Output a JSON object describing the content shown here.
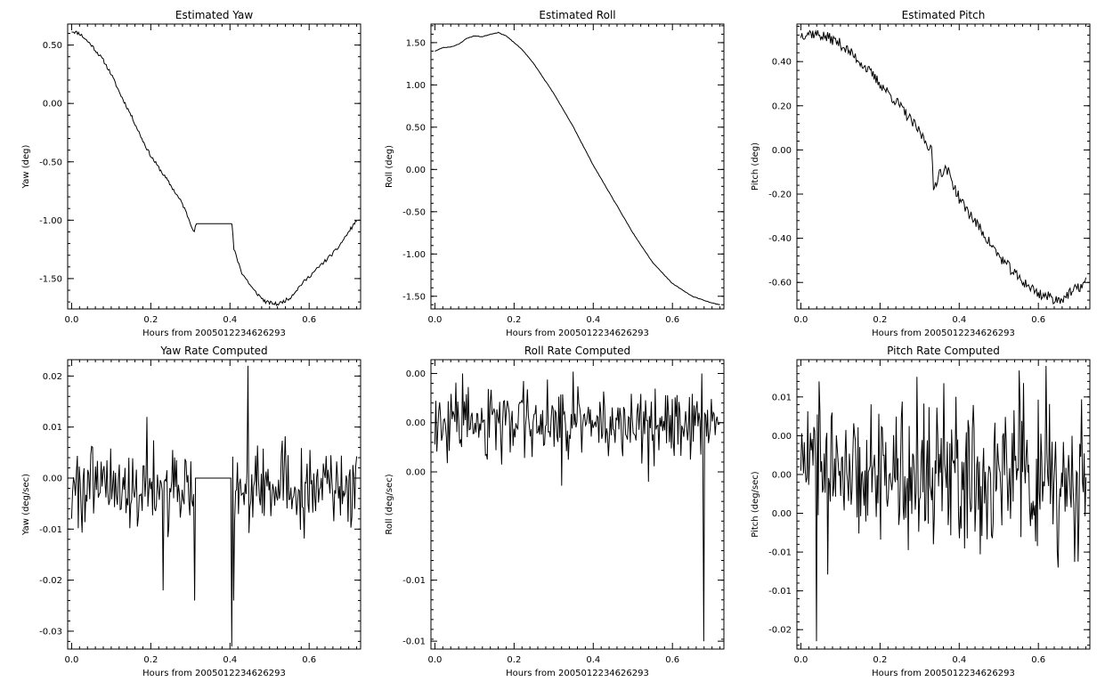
{
  "figure": {
    "background": "#ffffff",
    "line_color": "#000000"
  },
  "chart_data": [
    {
      "type": "line",
      "title": "Estimated Yaw",
      "xlabel": "Hours from 2005012234626293",
      "ylabel": "Yaw (deg)",
      "xlim": [
        -0.01,
        0.73
      ],
      "ylim": [
        -1.76,
        0.68
      ],
      "xticks": [
        0.0,
        0.2,
        0.4,
        0.6
      ],
      "xtick_labels": [
        "0.0",
        "0.2",
        "0.4",
        "0.6"
      ],
      "yticks": [
        0.5,
        0.0,
        -0.5,
        -1.0,
        -1.5
      ],
      "ytick_labels": [
        "0.50",
        "0.00",
        "-0.50",
        "-1.00",
        "-1.50"
      ],
      "series": [
        {
          "noise": 0.015,
          "seed": 11,
          "flat_segments": [
            [
              0.315,
              0.405
            ]
          ],
          "x": [
            0.0,
            0.02,
            0.05,
            0.08,
            0.1,
            0.12,
            0.15,
            0.18,
            0.2,
            0.22,
            0.25,
            0.28,
            0.3,
            0.31,
            0.315,
            0.405,
            0.41,
            0.43,
            0.46,
            0.49,
            0.52,
            0.55,
            0.58,
            0.61,
            0.64,
            0.67,
            0.7,
            0.72
          ],
          "y": [
            0.62,
            0.6,
            0.5,
            0.37,
            0.25,
            0.1,
            -0.1,
            -0.32,
            -0.45,
            -0.55,
            -0.7,
            -0.86,
            -1.02,
            -1.1,
            -1.03,
            -1.03,
            -1.25,
            -1.45,
            -1.6,
            -1.7,
            -1.72,
            -1.67,
            -1.55,
            -1.45,
            -1.35,
            -1.25,
            -1.1,
            -1.0
          ]
        }
      ]
    },
    {
      "type": "line",
      "title": "Estimated Roll",
      "xlabel": "Hours from 2005012234626293",
      "ylabel": "Roll (deg)",
      "xlim": [
        -0.01,
        0.73
      ],
      "ylim": [
        -1.65,
        1.72
      ],
      "xticks": [
        0.0,
        0.2,
        0.4,
        0.6
      ],
      "xtick_labels": [
        "0.0",
        "0.2",
        "0.4",
        "0.6"
      ],
      "yticks": [
        1.5,
        1.0,
        0.5,
        0.0,
        -0.5,
        -1.0,
        -1.5
      ],
      "ytick_labels": [
        "1.50",
        "1.00",
        "0.50",
        "0.00",
        "-0.50",
        "-1.00",
        "-1.50"
      ],
      "series": [
        {
          "noise": 0.003,
          "seed": 23,
          "x": [
            0.0,
            0.02,
            0.04,
            0.06,
            0.08,
            0.1,
            0.12,
            0.14,
            0.16,
            0.18,
            0.2,
            0.22,
            0.25,
            0.3,
            0.35,
            0.4,
            0.45,
            0.5,
            0.55,
            0.6,
            0.65,
            0.7,
            0.72
          ],
          "y": [
            1.4,
            1.44,
            1.45,
            1.48,
            1.55,
            1.58,
            1.57,
            1.6,
            1.62,
            1.58,
            1.5,
            1.42,
            1.25,
            0.9,
            0.5,
            0.05,
            -0.35,
            -0.75,
            -1.1,
            -1.35,
            -1.5,
            -1.58,
            -1.6
          ]
        }
      ]
    },
    {
      "type": "line",
      "title": "Estimated Pitch",
      "xlabel": "Hours from 2005012234626293",
      "ylabel": "Pitch (deg)",
      "xlim": [
        -0.01,
        0.73
      ],
      "ylim": [
        -0.72,
        0.57
      ],
      "xticks": [
        0.0,
        0.2,
        0.4,
        0.6
      ],
      "xtick_labels": [
        "0.0",
        "0.2",
        "0.4",
        "0.6"
      ],
      "yticks": [
        0.4,
        0.2,
        0.0,
        -0.2,
        -0.4,
        -0.6
      ],
      "ytick_labels": [
        "0.40",
        "0.20",
        "0.00",
        "-0.20",
        "-0.40",
        "-0.60"
      ],
      "series": [
        {
          "noise": 0.025,
          "seed": 37,
          "x": [
            0.0,
            0.02,
            0.05,
            0.08,
            0.1,
            0.15,
            0.2,
            0.25,
            0.3,
            0.33,
            0.335,
            0.35,
            0.37,
            0.4,
            0.45,
            0.5,
            0.55,
            0.6,
            0.65,
            0.68,
            0.72
          ],
          "y": [
            0.52,
            0.53,
            0.52,
            0.5,
            0.48,
            0.4,
            0.3,
            0.2,
            0.08,
            0.0,
            -0.18,
            -0.1,
            -0.09,
            -0.22,
            -0.35,
            -0.48,
            -0.58,
            -0.65,
            -0.68,
            -0.65,
            -0.6
          ]
        }
      ]
    },
    {
      "type": "line",
      "title": "Yaw Rate Computed",
      "xlabel": "Hours from 2005012234626293",
      "ylabel": "Yaw (deg/sec)",
      "xlim": [
        -0.01,
        0.73
      ],
      "ylim": [
        -0.0335,
        0.0232
      ],
      "xticks": [
        0.0,
        0.2,
        0.4,
        0.6
      ],
      "xtick_labels": [
        "0.0",
        "0.2",
        "0.4",
        "0.6"
      ],
      "yticks": [
        0.02,
        0.01,
        0.0,
        -0.01,
        -0.02,
        -0.03
      ],
      "ytick_labels": [
        "0.02",
        "0.01",
        "0.00",
        "-0.01",
        "-0.02",
        "-0.03"
      ],
      "series": [
        {
          "noise_series": {
            "n": 300,
            "std": 0.004,
            "base": -0.002,
            "seed": 101,
            "x0": 0.0,
            "x1": 0.72
          },
          "flat_segments": [
            [
              0.31,
              0.405
            ]
          ],
          "flat_value": 0.0,
          "spikes": [
            [
              0.23,
              -0.022
            ],
            [
              0.31,
              -0.024
            ],
            [
              0.405,
              -0.033
            ],
            [
              0.41,
              -0.024
            ],
            [
              0.445,
              0.022
            ],
            [
              0.19,
              0.012
            ]
          ]
        }
      ]
    },
    {
      "type": "line",
      "title": "Roll Rate Computed",
      "xlabel": "Hours from 2005012234626293",
      "ylabel": "Roll (deg/sec)",
      "xlim": [
        -0.01,
        0.73
      ],
      "ylim": [
        -0.0105,
        0.0042
      ],
      "xticks": [
        0.0,
        0.2,
        0.4,
        0.6
      ],
      "xtick_labels": [
        "0.0",
        "0.2",
        "0.4",
        "0.6"
      ],
      "yticks": [
        0.0035,
        0.001,
        -0.0015,
        -0.007,
        -0.0101
      ],
      "ytick_labels": [
        "0.00",
        "0.00",
        "0.00",
        "-0.01",
        "-0.01"
      ],
      "series": [
        {
          "noise_series": {
            "n": 300,
            "std": 0.0009,
            "base": 0.001,
            "seed": 202,
            "x0": 0.0,
            "x1": 0.72
          },
          "spikes": [
            [
              0.07,
              0.0035
            ],
            [
              0.68,
              -0.0101
            ],
            [
              0.675,
              0.0035
            ],
            [
              0.32,
              -0.0022
            ],
            [
              0.54,
              -0.002
            ]
          ]
        }
      ]
    },
    {
      "type": "line",
      "title": "Pitch Rate Computed",
      "xlabel": "Hours from 2005012234626293",
      "ylabel": "Pitch (deg/sec)",
      "xlim": [
        -0.01,
        0.73
      ],
      "ylim": [
        -0.0225,
        0.0148
      ],
      "xticks": [
        0.0,
        0.2,
        0.4,
        0.6
      ],
      "xtick_labels": [
        "0.0",
        "0.2",
        "0.4",
        "0.6"
      ],
      "yticks": [
        0.01,
        0.005,
        0.0,
        -0.005,
        -0.01,
        -0.015,
        -0.02
      ],
      "ytick_labels": [
        "0.01",
        "0.00",
        "0.00",
        "0.00",
        "-0.01",
        "-0.01",
        "-0.02"
      ],
      "series": [
        {
          "noise_series": {
            "n": 330,
            "std": 0.0045,
            "base": 0.0,
            "seed": 303,
            "x0": 0.0,
            "x1": 0.72
          },
          "spikes": [
            [
              0.04,
              -0.0215
            ],
            [
              0.045,
              0.012
            ],
            [
              0.335,
              -0.009
            ],
            [
              0.62,
              0.014
            ],
            [
              0.65,
              -0.012
            ]
          ]
        }
      ]
    }
  ]
}
